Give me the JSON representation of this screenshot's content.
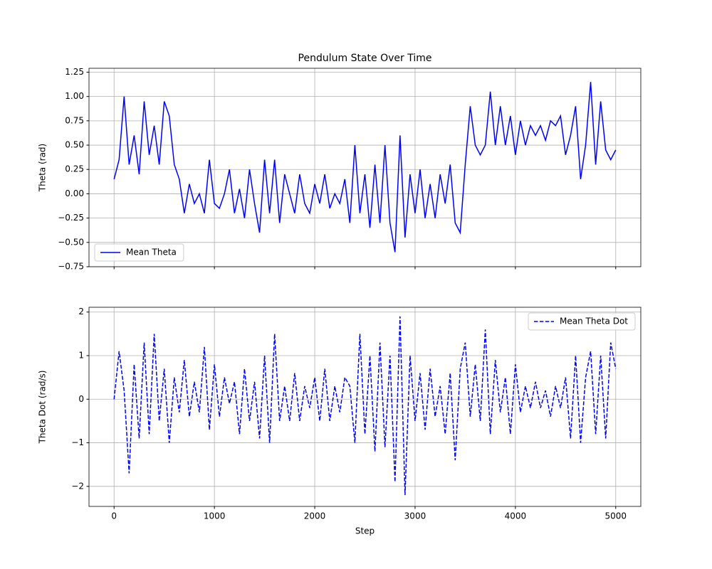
{
  "chart_data": [
    {
      "type": "line",
      "title": "Pendulum State Over Time",
      "ylabel": "Theta (rad)",
      "x": [
        0,
        50,
        100,
        150,
        200,
        250,
        300,
        350,
        400,
        450,
        500,
        550,
        600,
        650,
        700,
        750,
        800,
        850,
        900,
        950,
        1000,
        1050,
        1100,
        1150,
        1200,
        1250,
        1300,
        1350,
        1400,
        1450,
        1500,
        1550,
        1600,
        1650,
        1700,
        1750,
        1800,
        1850,
        1900,
        1950,
        2000,
        2050,
        2100,
        2150,
        2200,
        2250,
        2300,
        2350,
        2400,
        2450,
        2500,
        2550,
        2600,
        2650,
        2700,
        2750,
        2800,
        2850,
        2900,
        2950,
        3000,
        3050,
        3100,
        3150,
        3200,
        3250,
        3300,
        3350,
        3400,
        3450,
        3500,
        3550,
        3600,
        3650,
        3700,
        3750,
        3800,
        3850,
        3900,
        3950,
        4000,
        4050,
        4100,
        4150,
        4200,
        4250,
        4300,
        4350,
        4400,
        4450,
        4500,
        4550,
        4600,
        4650,
        4700,
        4750,
        4800,
        4850,
        4900,
        4950,
        5000
      ],
      "series": [
        {
          "name": "Mean Theta",
          "color": "#0000ff",
          "linestyle": "solid",
          "values": [
            0.15,
            0.35,
            1.0,
            0.3,
            0.6,
            0.2,
            0.95,
            0.4,
            0.7,
            0.3,
            0.95,
            0.8,
            0.3,
            0.15,
            -0.2,
            0.1,
            -0.1,
            0.0,
            -0.2,
            0.35,
            -0.1,
            -0.15,
            0.0,
            0.25,
            -0.2,
            0.05,
            -0.25,
            0.25,
            -0.1,
            -0.4,
            0.35,
            -0.2,
            0.35,
            -0.3,
            0.2,
            0.0,
            -0.2,
            0.2,
            -0.1,
            -0.2,
            0.1,
            -0.1,
            0.2,
            -0.15,
            0.0,
            -0.1,
            0.15,
            -0.3,
            0.5,
            -0.2,
            0.2,
            -0.35,
            0.3,
            -0.3,
            0.5,
            -0.3,
            -0.6,
            0.6,
            -0.45,
            0.2,
            -0.2,
            0.25,
            -0.25,
            0.1,
            -0.25,
            0.2,
            -0.1,
            0.3,
            -0.3,
            -0.4,
            0.3,
            0.9,
            0.5,
            0.4,
            0.5,
            1.05,
            0.5,
            0.9,
            0.5,
            0.8,
            0.4,
            0.75,
            0.5,
            0.7,
            0.6,
            0.7,
            0.55,
            0.75,
            0.7,
            0.8,
            0.4,
            0.6,
            0.9,
            0.15,
            0.5,
            1.15,
            0.3,
            0.95,
            0.45,
            0.35,
            0.45
          ]
        }
      ],
      "xlim": [
        -250,
        5250
      ],
      "xticks": [
        0,
        1000,
        2000,
        3000,
        4000,
        5000
      ],
      "ylim": [
        -0.75,
        1.29
      ],
      "yticks": [
        {
          "value": -0.75,
          "label": "−0.75"
        },
        {
          "value": -0.5,
          "label": "−0.50"
        },
        {
          "value": -0.25,
          "label": "−0.25"
        },
        {
          "value": 0,
          "label": "0.00"
        },
        {
          "value": 0.25,
          "label": "0.25"
        },
        {
          "value": 0.5,
          "label": "0.50"
        },
        {
          "value": 0.75,
          "label": "0.75"
        },
        {
          "value": 1,
          "label": "1.00"
        },
        {
          "value": 1.25,
          "label": "1.25"
        }
      ],
      "grid": true,
      "legend": "lower left"
    },
    {
      "type": "line",
      "xlabel": "Step",
      "ylabel": "Theta Dot (rad/s)",
      "x": [
        0,
        50,
        100,
        150,
        200,
        250,
        300,
        350,
        400,
        450,
        500,
        550,
        600,
        650,
        700,
        750,
        800,
        850,
        900,
        950,
        1000,
        1050,
        1100,
        1150,
        1200,
        1250,
        1300,
        1350,
        1400,
        1450,
        1500,
        1550,
        1600,
        1650,
        1700,
        1750,
        1800,
        1850,
        1900,
        1950,
        2000,
        2050,
        2100,
        2150,
        2200,
        2250,
        2300,
        2350,
        2400,
        2450,
        2500,
        2550,
        2600,
        2650,
        2700,
        2750,
        2800,
        2850,
        2900,
        2950,
        3000,
        3050,
        3100,
        3150,
        3200,
        3250,
        3300,
        3350,
        3400,
        3450,
        3500,
        3550,
        3600,
        3650,
        3700,
        3750,
        3800,
        3850,
        3900,
        3950,
        4000,
        4050,
        4100,
        4150,
        4200,
        4250,
        4300,
        4350,
        4400,
        4450,
        4500,
        4550,
        4600,
        4650,
        4700,
        4750,
        4800,
        4850,
        4900,
        4950,
        5000
      ],
      "series": [
        {
          "name": "Mean Theta Dot",
          "color": "#0000ff",
          "linestyle": "dashed",
          "values": [
            0.0,
            1.1,
            0.2,
            -1.7,
            0.8,
            -0.9,
            1.3,
            -0.8,
            1.5,
            -0.5,
            0.7,
            -1.0,
            0.5,
            -0.3,
            0.9,
            -0.4,
            0.4,
            -0.3,
            1.2,
            -0.7,
            0.8,
            -0.4,
            0.5,
            -0.1,
            0.4,
            -0.8,
            0.7,
            -0.5,
            0.4,
            -0.9,
            1.0,
            -1.0,
            1.5,
            -0.5,
            0.3,
            -0.5,
            0.6,
            -0.5,
            0.3,
            -0.2,
            0.5,
            -0.5,
            0.7,
            -0.5,
            0.3,
            -0.3,
            0.5,
            0.3,
            -1.0,
            1.5,
            -0.8,
            1.0,
            -1.2,
            1.3,
            -1.1,
            1.0,
            -1.9,
            1.9,
            -2.2,
            1.0,
            -0.5,
            0.6,
            -0.7,
            0.7,
            -0.4,
            0.3,
            -0.8,
            0.6,
            -1.4,
            0.7,
            1.3,
            -0.4,
            0.8,
            -0.5,
            1.6,
            -0.8,
            0.9,
            -0.3,
            0.5,
            -0.8,
            0.8,
            -0.3,
            0.3,
            -0.2,
            0.4,
            -0.2,
            0.2,
            -0.4,
            0.3,
            -0.2,
            0.5,
            -0.9,
            1.0,
            -1.0,
            0.5,
            1.1,
            -0.8,
            1.0,
            -0.9,
            1.3,
            0.7
          ]
        }
      ],
      "xlim": [
        -250,
        5250
      ],
      "xticks": [
        0,
        1000,
        2000,
        3000,
        4000,
        5000
      ],
      "ylim": [
        -2.46,
        2.11
      ],
      "yticks": [
        {
          "value": -2,
          "label": "−2"
        },
        {
          "value": -1,
          "label": "−1"
        },
        0,
        1,
        2
      ],
      "grid": true,
      "legend": "upper right"
    }
  ]
}
